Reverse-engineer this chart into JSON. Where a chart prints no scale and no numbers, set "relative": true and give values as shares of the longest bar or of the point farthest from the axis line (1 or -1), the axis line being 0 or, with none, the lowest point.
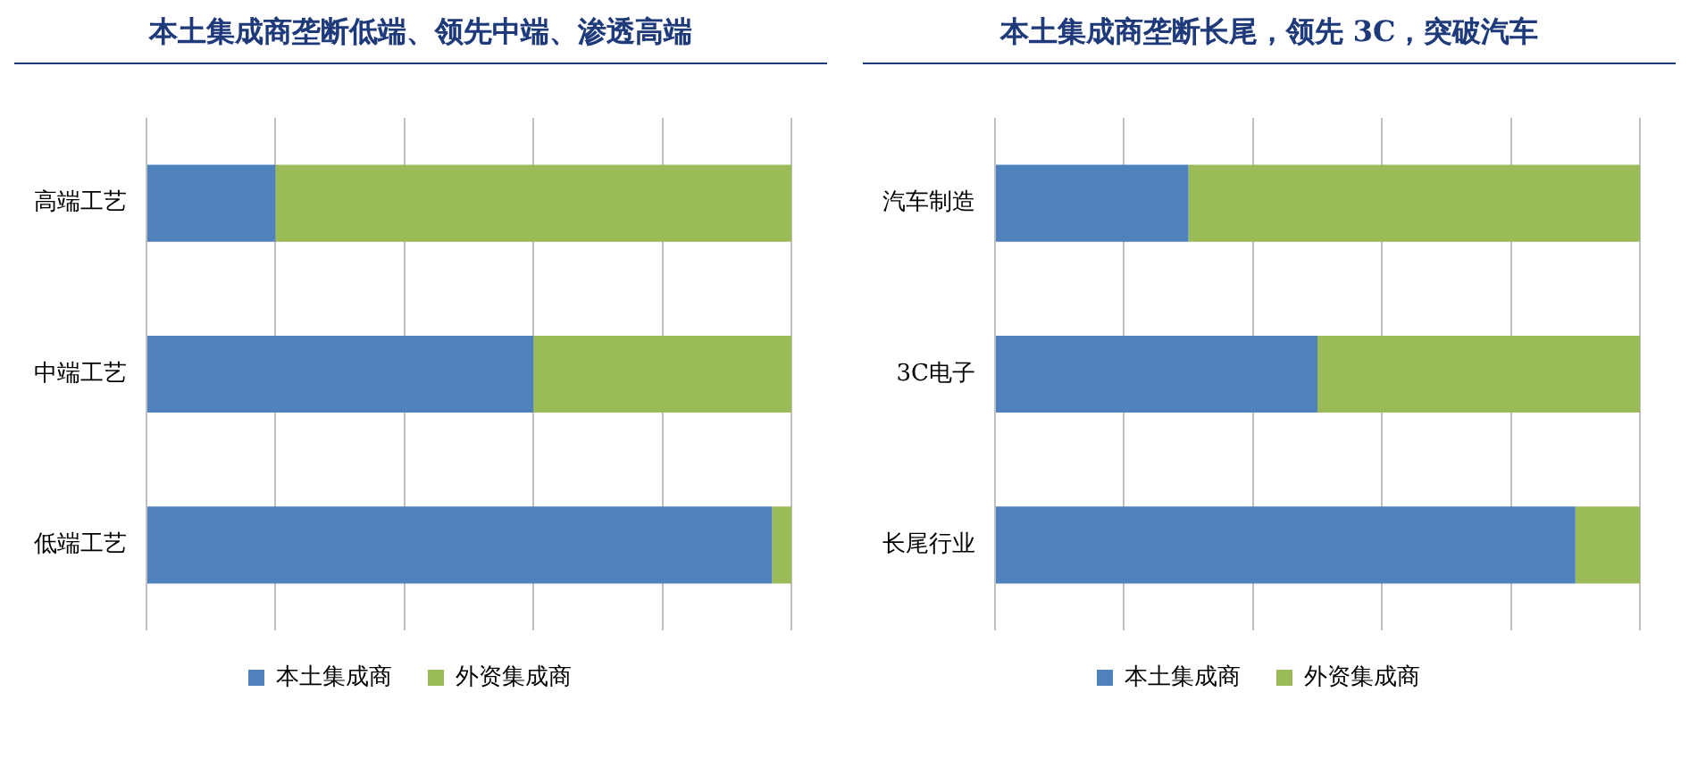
{
  "chart_data": [
    {
      "type": "bar",
      "orientation": "horizontal",
      "stacked": true,
      "relative": true,
      "title": "本土集成商垄断低端、领先中端、渗透高端",
      "categories": [
        "高端工艺",
        "中端工艺",
        "低端工艺"
      ],
      "series": [
        {
          "name": "本土集成商",
          "color": "#4f81bd",
          "values": [
            0.2,
            0.6,
            0.97
          ]
        },
        {
          "name": "外资集成商",
          "color": "#9bbb59",
          "values": [
            0.8,
            0.4,
            0.03
          ]
        }
      ],
      "legend": "bottom",
      "grid": "x"
    },
    {
      "type": "bar",
      "orientation": "horizontal",
      "stacked": true,
      "relative": true,
      "title": "本土集成商垄断长尾，领先 3C，突破汽车",
      "categories": [
        "汽车制造",
        "3C电子",
        "长尾行业"
      ],
      "series": [
        {
          "name": "本土集成商",
          "color": "#4f81bd",
          "values": [
            0.3,
            0.5,
            0.9
          ]
        },
        {
          "name": "外资集成商",
          "color": "#9bbb59",
          "values": [
            0.7,
            0.5,
            0.1
          ]
        }
      ],
      "legend": "bottom",
      "grid": "x"
    }
  ]
}
